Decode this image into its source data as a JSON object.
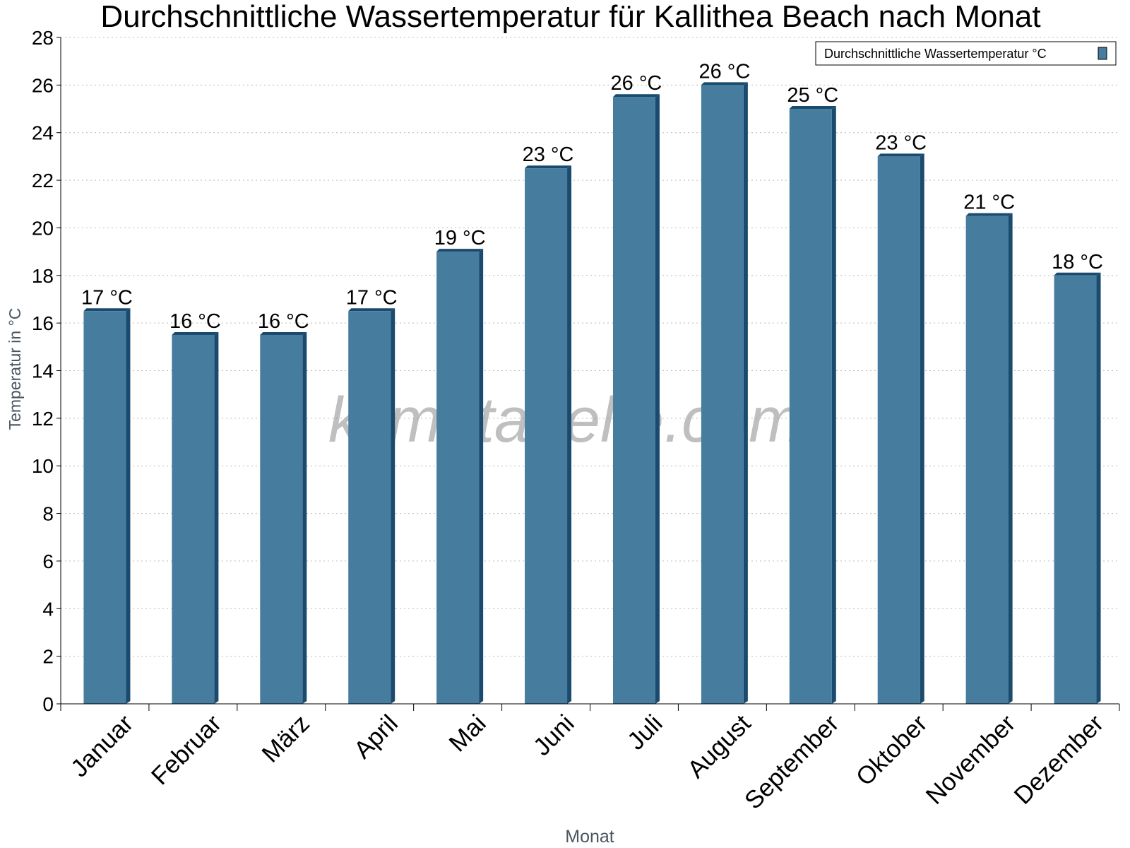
{
  "chart_data": {
    "type": "bar",
    "title": "Durchschnittliche Wassertemperatur für Kallithea Beach nach Monat",
    "xlabel": "Monat",
    "ylabel": "Temperatur in °C",
    "ylim": [
      0,
      28
    ],
    "yticks": [
      "0",
      "2",
      "4",
      "6",
      "8",
      "10",
      "12",
      "14",
      "16",
      "18",
      "20",
      "22",
      "24",
      "26",
      "28"
    ],
    "grid": true,
    "legend_position": "top-right",
    "categories": [
      "Januar",
      "Februar",
      "März",
      "April",
      "Mai",
      "Juni",
      "Juli",
      "August",
      "September",
      "Oktober",
      "November",
      "Dezember"
    ],
    "series": [
      {
        "name": "Durchschnittliche Wassertemperatur °C",
        "values": [
          16.5,
          15.5,
          15.5,
          16.5,
          19,
          22.5,
          25.5,
          26,
          25,
          23,
          20.5,
          18
        ],
        "labels": [
          "17 °C",
          "16 °C",
          "16 °C",
          "17 °C",
          "19 °C",
          "23 °C",
          "26 °C",
          "26 °C",
          "25 °C",
          "23 °C",
          "21 °C",
          "18 °C"
        ],
        "color": "#467c9e",
        "side_color": "#1a4b6e"
      }
    ],
    "watermark": "klimatabelle.com"
  }
}
